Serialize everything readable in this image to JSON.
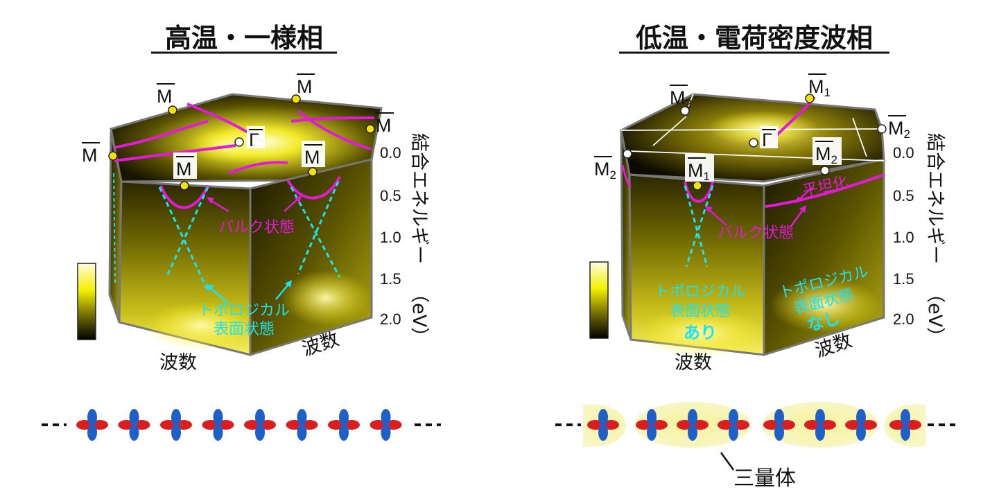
{
  "left_panel": {
    "title": "高温・一様相",
    "kpoints": [
      "M",
      "M",
      "M",
      "M",
      "M",
      "M"
    ],
    "gamma": "Γ",
    "bulk_label": "バルク状態",
    "topo_label_1": "トポロジカル",
    "topo_label_2": "表面状態",
    "wavenumber_left": "波数",
    "wavenumber_right": "波数"
  },
  "right_panel": {
    "title": "低温・電荷密度波相",
    "kpoint_main": "M",
    "sub_1": "1",
    "sub_2": "2",
    "gamma": "Γ",
    "flat_label": "平坦化",
    "bulk_label": "バルク状態",
    "topo_label_1": "トポロジカル",
    "topo_label_2": "表面状態",
    "topo_present": "あり",
    "topo_absent": "なし",
    "wavenumber_left": "波数",
    "wavenumber_right": "波数"
  },
  "energy_axis": {
    "label": "結合エネルギー",
    "unit": "（eV）",
    "ticks": [
      "0.0",
      "0.5",
      "1.0",
      "1.5",
      "2.0"
    ]
  },
  "chain": {
    "trimer_label": "三量体",
    "orbital_count_left": 8
  },
  "colors": {
    "band_magenta": "#e21ad8",
    "surface_cyan": "#1ee2f0",
    "orbital_red": "#d81e1e",
    "orbital_blue": "#1f5fc8",
    "highlight_yellow": "#f7f39a"
  }
}
